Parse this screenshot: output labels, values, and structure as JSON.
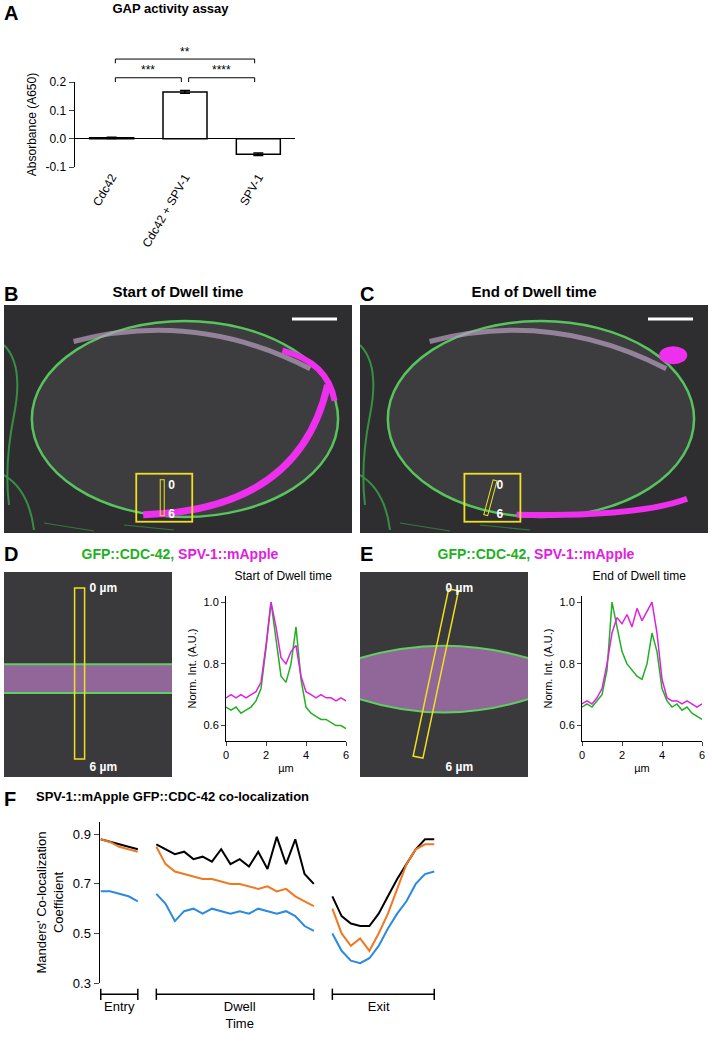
{
  "chart_data": [
    {
      "panel": "A",
      "type": "bar",
      "title": "GAP activity assay",
      "y_label": "Absorbance (A650)",
      "categories": [
        "Cdc42",
        "Cdc42 + SPV-1",
        "SPV-1"
      ],
      "values": [
        0.003,
        0.165,
        -0.055
      ],
      "errors": [
        0.002,
        0.005,
        0.004
      ],
      "color": "#ffffff",
      "ylim": [
        -0.1,
        0.2
      ],
      "yticks": [
        -0.1,
        {
          "value": 0,
          "label": "0.0"
        },
        0.1,
        0.2
      ],
      "annotations": [
        {
          "text": "***",
          "between": [
            "Cdc42",
            "Cdc42 + SPV-1"
          ]
        },
        {
          "text": "****",
          "between": [
            "Cdc42 + SPV-1",
            "SPV-1"
          ]
        },
        {
          "text": "**",
          "between": [
            "Cdc42",
            "SPV-1"
          ]
        }
      ]
    },
    {
      "type": "line",
      "title": "Start of Dwell time",
      "x_label": "µm",
      "y_label": "Norm. Int. (A.U.)",
      "x": [
        0,
        0.25,
        0.5,
        0.75,
        1,
        1.25,
        1.5,
        1.75,
        2,
        2.25,
        2.5,
        2.75,
        3,
        3.25,
        3.5,
        3.75,
        4,
        4.25,
        4.5,
        4.75,
        5,
        5.25,
        5.5,
        5.75,
        6
      ],
      "series": [
        {
          "color": "#22b022",
          "values": [
            0.66,
            0.65,
            0.66,
            0.64,
            0.65,
            0.66,
            0.68,
            0.72,
            0.85,
            1.0,
            0.88,
            0.76,
            0.74,
            0.8,
            0.92,
            0.75,
            0.66,
            0.64,
            0.63,
            0.62,
            0.62,
            0.61,
            0.6,
            0.6,
            0.59
          ]
        },
        {
          "color": "#e020e0",
          "values": [
            0.69,
            0.7,
            0.69,
            0.7,
            0.69,
            0.7,
            0.71,
            0.74,
            0.86,
            1.0,
            0.92,
            0.82,
            0.8,
            0.84,
            0.86,
            0.76,
            0.71,
            0.7,
            0.69,
            0.7,
            0.69,
            0.69,
            0.68,
            0.69,
            0.68
          ]
        }
      ],
      "xlim": [
        0,
        6
      ],
      "xticks": [
        0,
        2,
        4,
        6
      ],
      "ylim": [
        0.55,
        1.02
      ],
      "yticks": [
        0.6,
        0.8,
        {
          "value": 1,
          "label": "1.0"
        }
      ]
    },
    {
      "type": "line",
      "title": "End of Dwell time",
      "x_label": "µm",
      "y_label": "Norm. Int. (A.U.)",
      "x": [
        0,
        0.25,
        0.5,
        0.75,
        1,
        1.25,
        1.5,
        1.75,
        2,
        2.25,
        2.5,
        2.75,
        3,
        3.25,
        3.5,
        3.75,
        4,
        4.25,
        4.5,
        4.75,
        5,
        5.25,
        5.5,
        5.75,
        6
      ],
      "series": [
        {
          "color": "#22b022",
          "values": [
            0.66,
            0.67,
            0.66,
            0.68,
            0.7,
            0.78,
            1.0,
            0.92,
            0.84,
            0.8,
            0.78,
            0.76,
            0.75,
            0.8,
            0.9,
            0.84,
            0.72,
            0.68,
            0.66,
            0.67,
            0.65,
            0.66,
            0.64,
            0.63,
            0.62
          ]
        },
        {
          "color": "#e020e0",
          "values": [
            0.67,
            0.68,
            0.67,
            0.69,
            0.72,
            0.8,
            0.9,
            0.95,
            0.93,
            0.96,
            0.92,
            0.98,
            0.94,
            0.97,
            1.0,
            0.9,
            0.75,
            0.69,
            0.68,
            0.68,
            0.67,
            0.68,
            0.67,
            0.66,
            0.67
          ]
        }
      ],
      "xlim": [
        0,
        6
      ],
      "xticks": [
        0,
        2,
        4,
        6
      ],
      "ylim": [
        0.55,
        1.02
      ],
      "yticks": [
        0.6,
        0.8,
        {
          "value": 1,
          "label": "1.0"
        }
      ]
    },
    {
      "panel": "F",
      "type": "line",
      "title": "SPV-1::mApple GFP::CDC-42 co-localization",
      "y_label": "Manders' Co-localization Coefficient",
      "categories": [
        null,
        null,
        "Entry",
        null,
        null,
        null,
        null,
        null,
        null,
        null,
        null,
        null,
        null,
        null,
        null,
        "Dwell Time",
        null,
        null,
        null,
        null,
        null,
        null,
        null,
        null,
        null,
        null,
        null,
        null,
        null,
        null,
        "Exit",
        null,
        null,
        null,
        null,
        null,
        null
      ],
      "series": [
        {
          "color": "#000000",
          "values": [
            0.88,
            0.87,
            0.86,
            0.85,
            0.84,
            null,
            0.86,
            0.84,
            0.82,
            0.83,
            0.8,
            0.81,
            0.79,
            0.84,
            0.78,
            0.8,
            0.77,
            0.83,
            0.76,
            0.89,
            0.78,
            0.88,
            0.74,
            0.7,
            null,
            0.65,
            0.57,
            0.54,
            0.53,
            0.53,
            0.58,
            0.65,
            0.72,
            0.78,
            0.84,
            0.88,
            0.88
          ]
        },
        {
          "color": "#f07820",
          "values": [
            0.88,
            0.87,
            0.85,
            0.84,
            0.83,
            null,
            0.85,
            0.78,
            0.75,
            0.74,
            0.73,
            0.72,
            0.72,
            0.71,
            0.7,
            0.7,
            0.69,
            0.68,
            0.69,
            0.67,
            0.68,
            0.65,
            0.63,
            0.61,
            null,
            0.6,
            0.5,
            0.45,
            0.48,
            0.43,
            0.5,
            0.58,
            0.68,
            0.78,
            0.84,
            0.86,
            0.86
          ]
        },
        {
          "color": "#2a8ae0",
          "values": [
            0.67,
            0.67,
            0.66,
            0.65,
            0.63,
            null,
            0.66,
            0.62,
            0.55,
            0.59,
            0.6,
            0.58,
            0.6,
            0.59,
            0.58,
            0.59,
            0.58,
            0.6,
            0.59,
            0.58,
            0.59,
            0.57,
            0.53,
            0.51,
            null,
            0.5,
            0.43,
            0.39,
            0.38,
            0.4,
            0.45,
            0.52,
            0.58,
            0.63,
            0.7,
            0.74,
            0.75
          ]
        }
      ],
      "ylim": [
        0.3,
        0.95
      ],
      "yticks": [
        0.3,
        0.5,
        0.7,
        0.9
      ]
    }
  ],
  "images": [
    {
      "panel": "B",
      "title": "Start of Dwell time",
      "roi_labels": [
        "0",
        "6"
      ]
    },
    {
      "panel": "C",
      "title": "End of Dwell time",
      "roi_labels": [
        "0",
        "6"
      ]
    },
    {
      "panel": "D",
      "channels": [
        {
          "text": "GFP::CDC-42,",
          "color": "#22b022"
        },
        {
          "text": "SPV-1::mApple",
          "color": "#e020e0"
        }
      ],
      "roi_labels": [
        "0 µm",
        "6 µm"
      ]
    },
    {
      "panel": "E",
      "channels": [
        {
          "text": "GFP::CDC-42,",
          "color": "#22b022"
        },
        {
          "text": "SPV-1::mApple",
          "color": "#e020e0"
        }
      ],
      "roi_labels": [
        "0 µm",
        "6 µm"
      ]
    }
  ]
}
